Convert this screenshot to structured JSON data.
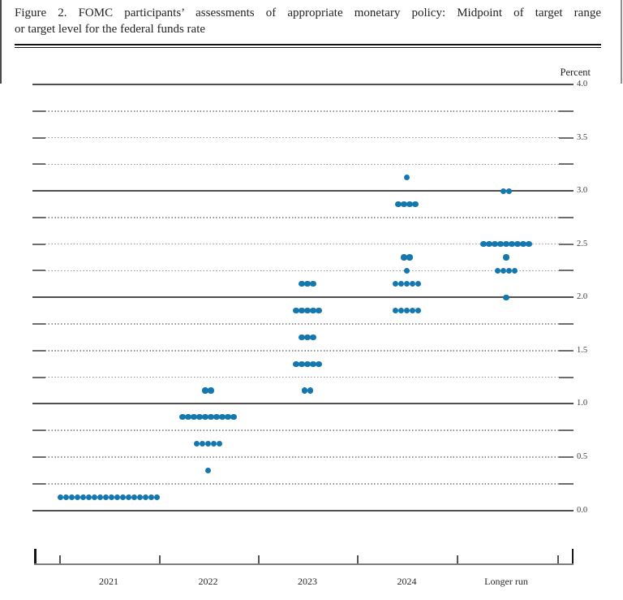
{
  "page": {
    "title_line1": "Figure 2.  FOMC participants’ assessments of appropriate monetary policy:  Midpoint of target range",
    "title_line2": "or target level for the federal funds rate"
  },
  "chart_data": {
    "type": "scatter",
    "subtype": "fomc-dot-plot",
    "title": "Figure 2. FOMC participants’ assessments of appropriate monetary policy: Midpoint of target range or target level for the federal funds rate",
    "unit_label": "Percent",
    "categories": [
      "2021",
      "2022",
      "2023",
      "2024",
      "Longer run"
    ],
    "y_axis": {
      "min": 0.0,
      "max": 4.0,
      "grid_step": 0.25,
      "label_step": 0.5,
      "tick_labels": [
        "4.0",
        "3.5",
        "3.0",
        "2.5",
        "2.0",
        "1.5",
        "1.0",
        "0.5",
        "0.0"
      ]
    },
    "grid": true,
    "legend_position": "none",
    "dot_color": "#1478ae",
    "series": [
      {
        "category": "2021",
        "dots": [
          {
            "rate": 0.125,
            "count": 18
          }
        ]
      },
      {
        "category": "2022",
        "dots": [
          {
            "rate": 1.125,
            "count": 2
          },
          {
            "rate": 0.875,
            "count": 10
          },
          {
            "rate": 0.625,
            "count": 5
          },
          {
            "rate": 0.375,
            "count": 1
          }
        ]
      },
      {
        "category": "2023",
        "dots": [
          {
            "rate": 2.125,
            "count": 3
          },
          {
            "rate": 1.875,
            "count": 5
          },
          {
            "rate": 1.625,
            "count": 3
          },
          {
            "rate": 1.375,
            "count": 5
          },
          {
            "rate": 1.125,
            "count": 2
          }
        ]
      },
      {
        "category": "2024",
        "dots": [
          {
            "rate": 3.125,
            "count": 1
          },
          {
            "rate": 2.875,
            "count": 4
          },
          {
            "rate": 2.375,
            "count": 2
          },
          {
            "rate": 2.25,
            "count": 1
          },
          {
            "rate": 2.125,
            "count": 5
          },
          {
            "rate": 1.875,
            "count": 5
          }
        ]
      },
      {
        "category": "Longer run",
        "dots": [
          {
            "rate": 3.0,
            "count": 2
          },
          {
            "rate": 2.5,
            "count": 9
          },
          {
            "rate": 2.375,
            "count": 1
          },
          {
            "rate": 2.25,
            "count": 4
          },
          {
            "rate": 2.0,
            "count": 1
          }
        ]
      }
    ]
  }
}
